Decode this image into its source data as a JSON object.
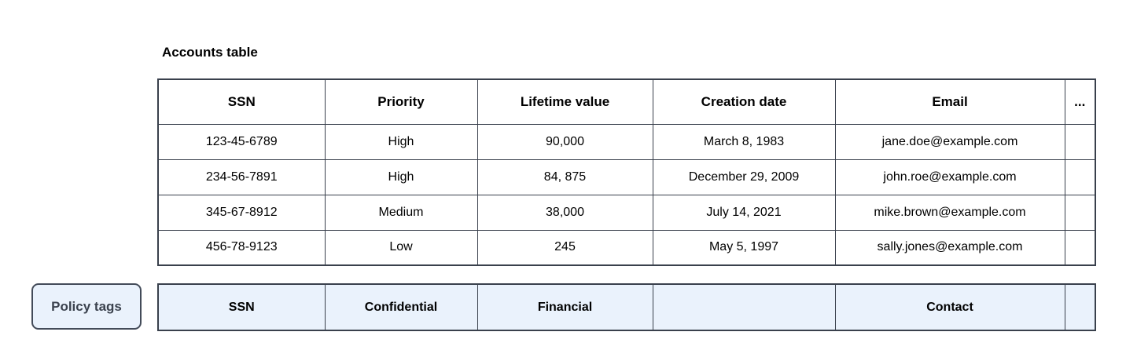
{
  "title": "Accounts table",
  "table": {
    "columns": [
      "SSN",
      "Priority",
      "Lifetime value",
      "Creation date",
      "Email",
      "..."
    ],
    "rows": [
      [
        "123-45-6789",
        "High",
        "90,000",
        "March 8, 1983",
        "jane.doe@example.com",
        ""
      ],
      [
        "234-56-7891",
        "High",
        "84, 875",
        "December 29, 2009",
        "john.roe@example.com",
        ""
      ],
      [
        "345-67-8912",
        "Medium",
        "38,000",
        "July 14, 2021",
        "mike.brown@example.com",
        ""
      ],
      [
        "456-78-9123",
        "Low",
        "245",
        "May 5, 1997",
        "sally.jones@example.com",
        ""
      ]
    ]
  },
  "policy": {
    "button_label": "Policy tags",
    "tags": [
      "SSN",
      "Confidential",
      "Financial",
      "",
      "Contact",
      ""
    ]
  },
  "colors": {
    "border": "#39404c",
    "tag_fill": "#eaf2fc",
    "button_border": "#434b59",
    "button_text": "#3b424e",
    "text": "#000000",
    "background": "#ffffff"
  }
}
